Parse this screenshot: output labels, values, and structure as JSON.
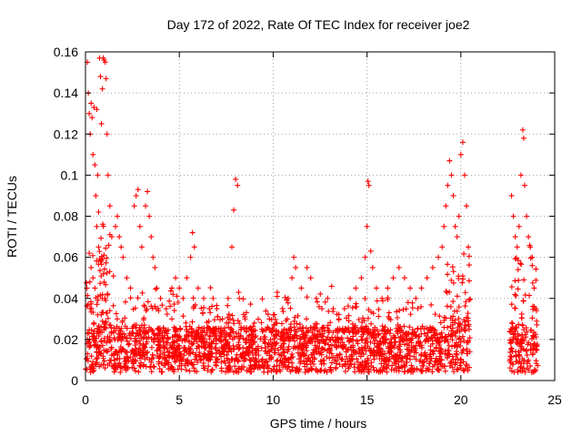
{
  "chart_data": {
    "type": "scatter",
    "title": "Day 172 of 2022, Rate Of TEC Index for receiver joe2",
    "xlabel": "GPS time / hours",
    "ylabel": "ROTI / TECUs",
    "xlim": [
      0,
      25
    ],
    "ylim": [
      0,
      0.16
    ],
    "xticks": [
      0,
      5,
      10,
      15,
      20,
      25
    ],
    "yticks": [
      0,
      0.02,
      0.04,
      0.06,
      0.08,
      0.1,
      0.12,
      0.14,
      0.16
    ],
    "xtick_labels": [
      "0",
      "5",
      "10",
      "15",
      "20",
      "25"
    ],
    "ytick_labels": [
      "0",
      "0.02",
      "0.04",
      "0.06",
      "0.08",
      "0.1",
      "0.12",
      "0.14",
      "0.16"
    ],
    "grid": true,
    "marker": "plus",
    "color": "#ff0000",
    "data_gap_hours": [
      20.5,
      22.6
    ],
    "series": [
      {
        "points": [
          [
            0.1,
            0.155
          ],
          [
            0.15,
            0.14
          ],
          [
            0.2,
            0.13
          ],
          [
            0.25,
            0.12
          ],
          [
            0.3,
            0.135
          ],
          [
            0.35,
            0.128
          ],
          [
            0.4,
            0.11
          ],
          [
            0.45,
            0.133
          ],
          [
            0.5,
            0.105
          ],
          [
            0.55,
            0.09
          ],
          [
            0.6,
            0.132
          ],
          [
            0.65,
            0.1
          ],
          [
            0.7,
            0.082
          ],
          [
            0.75,
            0.157
          ],
          [
            0.8,
            0.148
          ],
          [
            0.85,
            0.125
          ],
          [
            0.9,
            0.142
          ],
          [
            0.95,
            0.157
          ],
          [
            1.0,
            0.156
          ],
          [
            1.05,
            0.155
          ],
          [
            1.1,
            0.147
          ],
          [
            1.15,
            0.12
          ],
          [
            1.2,
            0.1
          ],
          [
            1.3,
            0.085
          ],
          [
            1.4,
            0.07
          ],
          [
            0.2,
            0.062
          ],
          [
            0.3,
            0.055
          ],
          [
            0.4,
            0.05
          ],
          [
            0.5,
            0.045
          ],
          [
            0.6,
            0.075
          ],
          [
            0.7,
            0.065
          ],
          [
            0.8,
            0.058
          ],
          [
            0.25,
            0.035
          ],
          [
            0.45,
            0.028
          ],
          [
            1.6,
            0.075
          ],
          [
            1.7,
            0.08
          ],
          [
            1.8,
            0.07
          ],
          [
            1.9,
            0.065
          ],
          [
            2.0,
            0.06
          ],
          [
            2.2,
            0.05
          ],
          [
            2.4,
            0.045
          ],
          [
            2.6,
            0.085
          ],
          [
            2.7,
            0.09
          ],
          [
            2.8,
            0.093
          ],
          [
            2.9,
            0.075
          ],
          [
            3.0,
            0.065
          ],
          [
            3.2,
            0.085
          ],
          [
            3.3,
            0.092
          ],
          [
            3.4,
            0.08
          ],
          [
            3.5,
            0.07
          ],
          [
            3.6,
            0.06
          ],
          [
            3.7,
            0.055
          ],
          [
            3.8,
            0.045
          ],
          [
            4.0,
            0.04
          ],
          [
            4.3,
            0.035
          ],
          [
            4.6,
            0.045
          ],
          [
            4.8,
            0.05
          ],
          [
            5.0,
            0.045
          ],
          [
            5.2,
            0.04
          ],
          [
            5.4,
            0.05
          ],
          [
            5.6,
            0.06
          ],
          [
            5.7,
            0.072
          ],
          [
            5.8,
            0.065
          ],
          [
            6.0,
            0.045
          ],
          [
            6.3,
            0.04
          ],
          [
            6.6,
            0.035
          ],
          [
            6.8,
            0.04
          ],
          [
            7.0,
            0.035
          ],
          [
            7.3,
            0.03
          ],
          [
            7.6,
            0.04
          ],
          [
            7.8,
            0.065
          ],
          [
            7.9,
            0.083
          ],
          [
            8.0,
            0.098
          ],
          [
            8.1,
            0.095
          ],
          [
            8.2,
            0.04
          ],
          [
            8.5,
            0.03
          ],
          [
            8.8,
            0.025
          ],
          [
            9.0,
            0.028
          ],
          [
            9.4,
            0.025
          ],
          [
            9.8,
            0.03
          ],
          [
            10.2,
            0.028
          ],
          [
            10.5,
            0.035
          ],
          [
            10.8,
            0.04
          ],
          [
            11.0,
            0.05
          ],
          [
            11.1,
            0.06
          ],
          [
            11.2,
            0.055
          ],
          [
            11.5,
            0.045
          ],
          [
            11.8,
            0.055
          ],
          [
            12.0,
            0.05
          ],
          [
            12.3,
            0.04
          ],
          [
            12.6,
            0.035
          ],
          [
            12.9,
            0.04
          ],
          [
            13.2,
            0.035
          ],
          [
            13.5,
            0.03
          ],
          [
            13.8,
            0.035
          ],
          [
            14.1,
            0.04
          ],
          [
            14.4,
            0.045
          ],
          [
            14.7,
            0.05
          ],
          [
            14.9,
            0.06
          ],
          [
            15.0,
            0.075
          ],
          [
            15.05,
            0.097
          ],
          [
            15.1,
            0.095
          ],
          [
            15.2,
            0.063
          ],
          [
            15.3,
            0.055
          ],
          [
            15.5,
            0.045
          ],
          [
            15.8,
            0.04
          ],
          [
            16.1,
            0.045
          ],
          [
            16.4,
            0.05
          ],
          [
            16.7,
            0.055
          ],
          [
            17.0,
            0.05
          ],
          [
            17.3,
            0.045
          ],
          [
            17.6,
            0.04
          ],
          [
            17.9,
            0.045
          ],
          [
            18.2,
            0.05
          ],
          [
            18.5,
            0.055
          ],
          [
            18.8,
            0.06
          ],
          [
            19.0,
            0.065
          ],
          [
            19.1,
            0.075
          ],
          [
            19.2,
            0.085
          ],
          [
            19.3,
            0.095
          ],
          [
            19.4,
            0.107
          ],
          [
            19.5,
            0.1
          ],
          [
            19.6,
            0.09
          ],
          [
            19.7,
            0.075
          ],
          [
            19.8,
            0.07
          ],
          [
            19.9,
            0.08
          ],
          [
            20.0,
            0.11
          ],
          [
            20.1,
            0.116
          ],
          [
            20.2,
            0.1
          ],
          [
            20.3,
            0.085
          ],
          [
            20.4,
            0.065
          ],
          [
            22.7,
            0.09
          ],
          [
            22.8,
            0.08
          ],
          [
            22.9,
            0.07
          ],
          [
            23.0,
            0.065
          ],
          [
            23.1,
            0.075
          ],
          [
            23.2,
            0.1
          ],
          [
            23.3,
            0.122
          ],
          [
            23.35,
            0.118
          ],
          [
            23.4,
            0.095
          ],
          [
            23.5,
            0.08
          ],
          [
            23.6,
            0.07
          ],
          [
            23.7,
            0.065
          ],
          [
            23.8,
            0.06
          ],
          [
            23.9,
            0.045
          ],
          [
            24.0,
            0.035
          ]
        ]
      }
    ]
  }
}
